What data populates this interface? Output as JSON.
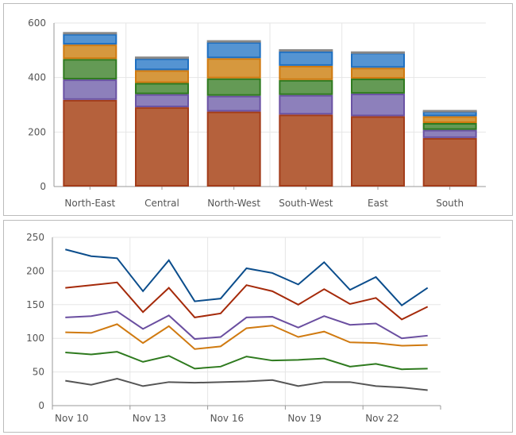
{
  "chart_data": [
    {
      "type": "bar",
      "stacked": true,
      "categories": [
        "North-East",
        "Central",
        "North-West",
        "South-West",
        "East",
        "South"
      ],
      "ylim": [
        0,
        600
      ],
      "yticks": [
        0,
        200,
        400,
        600
      ],
      "grid": true,
      "series": [
        {
          "color": "#b5613c",
          "border": "#a33c1a",
          "values": [
            318,
            291,
            275,
            264,
            258,
            178
          ]
        },
        {
          "color": "#8d80bb",
          "border": "#6a52a3",
          "values": [
            75,
            48,
            58,
            72,
            83,
            30
          ]
        },
        {
          "color": "#649a55",
          "border": "#2f7a1f",
          "values": [
            75,
            41,
            64,
            55,
            55,
            25
          ]
        },
        {
          "color": "#d6983e",
          "border": "#d07a10",
          "values": [
            53,
            47,
            74,
            52,
            40,
            25
          ]
        },
        {
          "color": "#5594d2",
          "border": "#1e6fc0",
          "values": [
            39,
            43,
            59,
            53,
            55,
            18
          ]
        },
        {
          "color": "#999999",
          "border": "#888888",
          "values": [
            7,
            7,
            7,
            8,
            5,
            5
          ]
        }
      ]
    },
    {
      "type": "line",
      "x": [
        "Nov 10",
        "Nov 11",
        "Nov 12",
        "Nov 13",
        "Nov 14",
        "Nov 15",
        "Nov 16",
        "Nov 17",
        "Nov 18",
        "Nov 19",
        "Nov 20",
        "Nov 21",
        "Nov 22",
        "Nov 23",
        "Nov 24"
      ],
      "xtick_labels": [
        "Nov 10",
        "Nov 13",
        "Nov 16",
        "Nov 19",
        "Nov 22"
      ],
      "ylim": [
        0,
        250
      ],
      "yticks": [
        0,
        50,
        100,
        150,
        200,
        250
      ],
      "grid": true,
      "series": [
        {
          "color": "#0b4d8c",
          "values": [
            232,
            222,
            219,
            170,
            216,
            155,
            159,
            204,
            197,
            180,
            213,
            172,
            191,
            149,
            175
          ]
        },
        {
          "color": "#a52a0a",
          "values": [
            175,
            179,
            183,
            139,
            175,
            131,
            137,
            179,
            170,
            150,
            173,
            151,
            160,
            128,
            147
          ]
        },
        {
          "color": "#6a4ea0",
          "values": [
            131,
            133,
            140,
            114,
            134,
            99,
            102,
            131,
            132,
            116,
            133,
            120,
            122,
            100,
            104
          ]
        },
        {
          "color": "#d07a10",
          "values": [
            109,
            108,
            121,
            93,
            118,
            84,
            88,
            115,
            119,
            102,
            110,
            94,
            93,
            89,
            90
          ]
        },
        {
          "color": "#2e7a1e",
          "values": [
            79,
            76,
            80,
            65,
            74,
            55,
            58,
            73,
            67,
            68,
            70,
            58,
            62,
            54,
            55
          ]
        },
        {
          "color": "#555555",
          "values": [
            37,
            31,
            40,
            29,
            35,
            34,
            35,
            36,
            38,
            29,
            35,
            35,
            29,
            27,
            23
          ]
        }
      ]
    }
  ]
}
